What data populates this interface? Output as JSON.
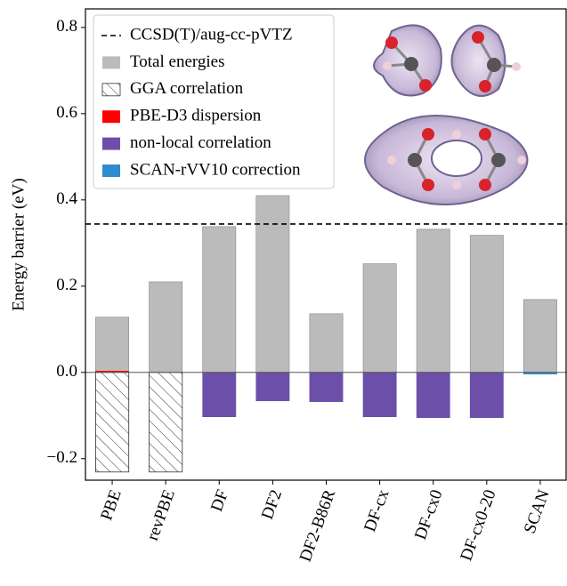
{
  "chart_data": {
    "type": "bar",
    "y_label": "Energy barrier (eV)",
    "categories": [
      "PBE",
      "revPBE",
      "DF",
      "DF2",
      "DF2-B86R",
      "DF-cx",
      "DF-cx0",
      "DF-cx0-20",
      "SCAN"
    ],
    "reference_line": {
      "name": "CCSD(T)/aug-cc-pVTZ",
      "value": 0.344,
      "color": "#000000"
    },
    "series": [
      {
        "name": "Total energies",
        "color": "#bbbbbb",
        "values": [
          0.128,
          0.21,
          0.338,
          0.41,
          0.136,
          0.252,
          0.332,
          0.318,
          0.169
        ]
      },
      {
        "name": "GGA correlation",
        "color": "#ffffff",
        "hatch": true,
        "values": [
          -0.231,
          -0.231,
          null,
          null,
          null,
          null,
          null,
          null,
          null
        ]
      },
      {
        "name": "PBE-D3 dispersion",
        "color": "#ff0000",
        "values": [
          0.003,
          null,
          null,
          null,
          null,
          null,
          null,
          null,
          null
        ]
      },
      {
        "name": "non-local correlation",
        "color": "#6b4fa8",
        "values": [
          null,
          null,
          -0.103,
          -0.066,
          -0.068,
          -0.103,
          -0.105,
          -0.105,
          null
        ]
      },
      {
        "name": "SCAN-rVV10 correction",
        "color": "#2e8ccf",
        "values": [
          null,
          null,
          null,
          null,
          null,
          null,
          null,
          null,
          -0.004
        ]
      }
    ],
    "ylim": [
      -0.25,
      0.843
    ],
    "yticks": [
      {
        "value": -0.2,
        "label": "−0.2"
      },
      {
        "value": 0,
        "label": "0.0"
      },
      0.2,
      0.4,
      0.6,
      0.8
    ]
  }
}
